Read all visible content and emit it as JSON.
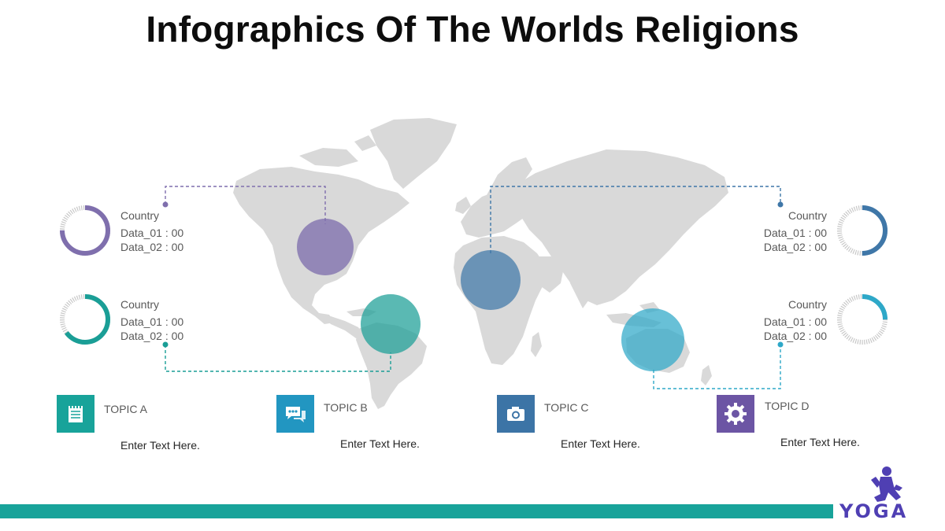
{
  "title": "Infographics Of The Worlds Religions",
  "colors": {
    "purple": "#7f6fad",
    "teal": "#1a9e96",
    "steel": "#3f77a8",
    "cyan": "#2ea8c8",
    "topic_a": "#18a39a",
    "topic_b": "#2296c1",
    "topic_c": "#3c74a6",
    "topic_d": "#6c55a4",
    "map": "#d9d9d9",
    "footer": "#18a39a",
    "logo": "#4f3fb3"
  },
  "stats": [
    {
      "country": "Country",
      "data1": "Data_01 : 00",
      "data2": "Data_02 : 00",
      "progress": 0.75,
      "color": "#7f6fad"
    },
    {
      "country": "Country",
      "data1": "Data_01 : 00",
      "data2": "Data_02 : 00",
      "progress": 0.65,
      "color": "#1a9e96"
    },
    {
      "country": "Country",
      "data1": "Data_01 : 00",
      "data2": "Data_02 : 00",
      "progress": 0.5,
      "color": "#3f77a8"
    },
    {
      "country": "Country",
      "data1": "Data_01 : 00",
      "data2": "Data_02 : 00",
      "progress": 0.25,
      "color": "#2ea8c8"
    }
  ],
  "topics": [
    {
      "label": "TOPIC  A",
      "text": "Enter Text Here.",
      "icon": "notepad-icon"
    },
    {
      "label": "TOPIC B",
      "text": "Enter Text Here.",
      "icon": "chat-bubbles-icon"
    },
    {
      "label": "TOPIC C",
      "text": "Enter Text Here.",
      "icon": "camera-icon"
    },
    {
      "label": "TOPIC D",
      "text": "Enter Text Here.",
      "icon": "gear-icon"
    }
  ],
  "logo": {
    "text": "YOGA"
  }
}
